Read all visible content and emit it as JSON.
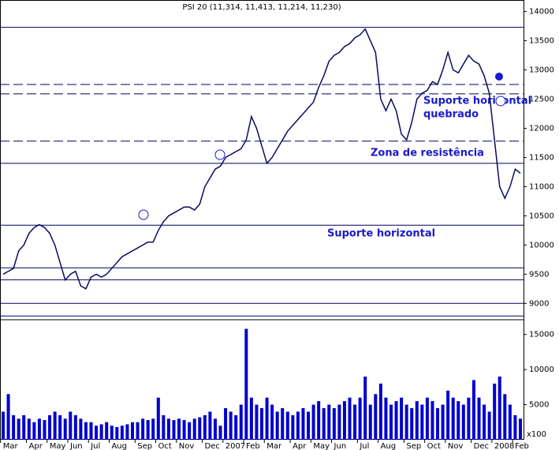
{
  "chart_data": {
    "type": "line",
    "title": "PSI 20 (11,314, 11,413, 11,214, 11,230)",
    "categories": [
      "Mar",
      null,
      null,
      null,
      null,
      "Apr",
      null,
      null,
      null,
      "May",
      null,
      null,
      null,
      "Jun",
      null,
      null,
      null,
      "Jul",
      null,
      null,
      null,
      "Aug",
      null,
      null,
      null,
      null,
      "Sep",
      null,
      null,
      null,
      "Oct",
      null,
      null,
      null,
      "Nov",
      null,
      null,
      null,
      null,
      "Dec",
      null,
      null,
      null,
      "2007",
      null,
      null,
      null,
      "Feb",
      null,
      null,
      null,
      "Mar",
      null,
      null,
      null,
      null,
      "Apr",
      null,
      null,
      null,
      "May",
      null,
      null,
      null,
      "Jun",
      null,
      null,
      null,
      null,
      "Jul",
      null,
      null,
      null,
      "Aug",
      null,
      null,
      null,
      null,
      "Sep",
      null,
      null,
      null,
      "Oct",
      null,
      null,
      null,
      "Nov",
      null,
      null,
      null,
      null,
      "Dec",
      null,
      null,
      null,
      "2008",
      null,
      null,
      null,
      "Feb",
      null
    ],
    "series": [
      {
        "name": "PSI 20",
        "color": "#0a0a60",
        "values": [
          9500,
          9550,
          9600,
          9900,
          10000,
          10200,
          10300,
          10350,
          10300,
          10200,
          10000,
          9700,
          9400,
          9500,
          9550,
          9300,
          9250,
          9450,
          9500,
          9450,
          9500,
          9600,
          9700,
          9800,
          9850,
          9900,
          9950,
          10000,
          10050,
          10050,
          10250,
          10400,
          10500,
          10550,
          10600,
          10650,
          10650,
          10600,
          10700,
          11000,
          11150,
          11300,
          11350,
          11500,
          11550,
          11600,
          11650,
          11800,
          12200,
          12000,
          11700,
          11400,
          11500,
          11650,
          11800,
          11950,
          12050,
          12150,
          12250,
          12350,
          12450,
          12700,
          12900,
          13150,
          13250,
          13300,
          13400,
          13450,
          13550,
          13600,
          13700,
          13500,
          13300,
          12500,
          12300,
          12500,
          12300,
          11900,
          11800,
          12100,
          12500,
          12600,
          12650,
          12800,
          12750,
          13000,
          13300,
          13000,
          12950,
          13100,
          13250,
          13150,
          13100,
          12900,
          12600,
          11800,
          11000,
          10800,
          11000,
          11300,
          11230
        ]
      },
      {
        "name": "Volume",
        "color": "#0000cc",
        "axis": "y2",
        "values": [
          4000,
          6500,
          3500,
          3000,
          3500,
          3000,
          2500,
          3000,
          2800,
          3500,
          4000,
          3500,
          3000,
          4000,
          3500,
          3000,
          2500,
          2500,
          2000,
          2200,
          2500,
          2000,
          1800,
          2000,
          2200,
          2500,
          2500,
          3000,
          2800,
          3000,
          6000,
          3500,
          3000,
          2800,
          3000,
          2800,
          2500,
          3000,
          3200,
          3500,
          4000,
          3000,
          2000,
          4500,
          4000,
          3500,
          5000,
          15800,
          6000,
          5000,
          4500,
          6000,
          5000,
          4000,
          4500,
          4000,
          3500,
          4000,
          4500,
          4000,
          5000,
          5500,
          4500,
          5000,
          4500,
          5000,
          5500,
          6000,
          5000,
          6000,
          9000,
          5000,
          6500,
          8000,
          6000,
          5000,
          5500,
          6000,
          5000,
          4500,
          5500,
          5000,
          6000,
          5500,
          4500,
          5000,
          7000,
          6000,
          5500,
          5000,
          6000,
          8500,
          6000,
          5000,
          4000,
          8000,
          9000,
          6500,
          5000,
          3500,
          3000
        ]
      }
    ],
    "ylim": [
      8720,
      14130
    ],
    "yticks": [
      9000,
      9500,
      10000,
      10500,
      11000,
      11500,
      12000,
      12500,
      13000,
      13500,
      14000
    ],
    "y2lim": [
      0,
      17100
    ],
    "y2ticks": [
      5000,
      10000,
      15000
    ],
    "y2_unit_label": "x100",
    "hlines": [
      {
        "value": 13730,
        "style": "solid"
      },
      {
        "value": 12750,
        "style": "dashed"
      },
      {
        "value": 12590,
        "style": "dashed"
      },
      {
        "value": 11780,
        "style": "dashed"
      },
      {
        "value": 11400,
        "style": "solid"
      },
      {
        "value": 10340,
        "style": "solid"
      },
      {
        "value": 9610,
        "style": "solid"
      },
      {
        "value": 9405,
        "style": "solid"
      },
      {
        "value": 9000,
        "style": "solid"
      },
      {
        "value": 8785,
        "style": "solid"
      }
    ],
    "annotations": [
      "Suporte horizontal",
      "quebrado",
      "Zona de resistência",
      "Suporte horizontal"
    ],
    "grid": false
  }
}
